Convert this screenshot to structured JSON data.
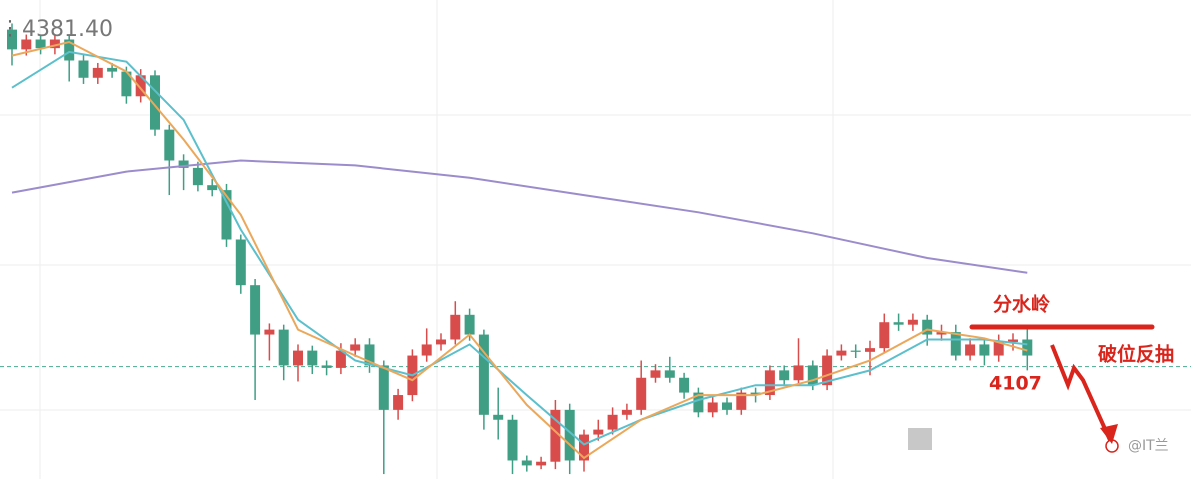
{
  "chart_data": {
    "type": "candlestick",
    "price_label": "4381.40",
    "ylim": [
      4016,
      4404
    ],
    "up_color": "#d94c4c",
    "down_color": "#3f9e84",
    "open": [
      4380,
      4364,
      4372,
      4365,
      4372,
      4355,
      4341,
      4349,
      4346,
      4326,
      4343,
      4299,
      4274,
      4268,
      4254,
      4250,
      4210,
      4173,
      4133,
      4137,
      4108,
      4120,
      4108,
      4106,
      4120,
      4125,
      4108,
      4072,
      4084,
      4116,
      4125,
      4129,
      4149,
      4133,
      4068,
      4064,
      4031,
      4027,
      4030,
      4072,
      4031,
      4052,
      4056,
      4068,
      4072,
      4098,
      4104,
      4098,
      4086,
      4070,
      4078,
      4072,
      4086,
      4084,
      4104,
      4096,
      4108,
      4092,
      4116,
      4120,
      4119,
      4122,
      4143,
      4141,
      4145,
      4133,
      4135,
      4116,
      4125,
      4116,
      4127,
      4129
    ],
    "high": [
      4385,
      4376,
      4376,
      4376,
      4376,
      4360,
      4353,
      4353,
      4350,
      4348,
      4347,
      4303,
      4279,
      4273,
      4259,
      4255,
      4214,
      4178,
      4142,
      4141,
      4125,
      4124,
      4112,
      4126,
      4130,
      4130,
      4112,
      4089,
      4121,
      4138,
      4134,
      4160,
      4154,
      4137,
      4090,
      4068,
      4035,
      4034,
      4080,
      4077,
      4056,
      4064,
      4074,
      4077,
      4112,
      4109,
      4115,
      4102,
      4090,
      4083,
      4082,
      4090,
      4090,
      4108,
      4108,
      4130,
      4112,
      4121,
      4125,
      4125,
      4128,
      4150,
      4150,
      4150,
      4149,
      4141,
      4141,
      4130,
      4130,
      4133,
      4134,
      4141
    ],
    "low": [
      4351,
      4359,
      4360,
      4360,
      4338,
      4336,
      4336,
      4341,
      4320,
      4321,
      4294,
      4246,
      4250,
      4249,
      4245,
      4204,
      4166,
      4080,
      4112,
      4096,
      4095,
      4101,
      4100,
      4101,
      4115,
      4102,
      4020,
      4064,
      4079,
      4111,
      4120,
      4125,
      4128,
      4056,
      4048,
      4020,
      4022,
      4024,
      4024,
      4020,
      4022,
      4047,
      4052,
      4064,
      4068,
      4094,
      4094,
      4081,
      4066,
      4066,
      4068,
      4068,
      4078,
      4080,
      4092,
      4092,
      4088,
      4088,
      4112,
      4114,
      4100,
      4118,
      4136,
      4136,
      4124,
      4128,
      4112,
      4112,
      4108,
      4111,
      4120,
      4104
    ],
    "close": [
      4364,
      4372,
      4365,
      4372,
      4355,
      4341,
      4349,
      4346,
      4326,
      4343,
      4299,
      4274,
      4268,
      4254,
      4250,
      4210,
      4173,
      4133,
      4137,
      4108,
      4120,
      4108,
      4106,
      4120,
      4125,
      4108,
      4072,
      4084,
      4116,
      4125,
      4129,
      4149,
      4133,
      4068,
      4064,
      4031,
      4027,
      4030,
      4072,
      4031,
      4052,
      4056,
      4068,
      4072,
      4098,
      4104,
      4098,
      4086,
      4070,
      4078,
      4072,
      4086,
      4084,
      4104,
      4096,
      4108,
      4092,
      4116,
      4120,
      4119,
      4122,
      4143,
      4141,
      4145,
      4133,
      4135,
      4116,
      4125,
      4116,
      4127,
      4129,
      4116
    ],
    "lines": [
      {
        "color": "#9b8ccc",
        "x": [
          0,
          8,
          16,
          24,
          32,
          40,
          48,
          56,
          64,
          71
        ],
        "values": [
          4248,
          4265,
          4274,
          4270,
          4260,
          4246,
          4232,
          4215,
          4195,
          4183
        ]
      },
      {
        "color": "#5bc0cc",
        "x": [
          0,
          4,
          8,
          12,
          16,
          20,
          24,
          28,
          32,
          36,
          40,
          44,
          48,
          52,
          56,
          60,
          64,
          68,
          71
        ],
        "values": [
          4333,
          4362,
          4354,
          4307,
          4218,
          4145,
          4112,
          4100,
          4125,
          4084,
          4044,
          4064,
          4080,
          4092,
          4092,
          4104,
          4129,
          4129,
          4125
        ]
      },
      {
        "color": "#eba85a",
        "x": [
          0,
          4,
          8,
          12,
          16,
          20,
          24,
          28,
          32,
          36,
          40,
          44,
          48,
          52,
          56,
          60,
          64,
          68,
          71
        ],
        "values": [
          4359,
          4370,
          4346,
          4291,
          4230,
          4137,
          4116,
          4096,
          4133,
          4076,
          4033,
          4064,
          4084,
          4084,
          4096,
          4112,
          4137,
          4130,
          4120
        ]
      }
    ],
    "reference_line": 4107,
    "annotations": [
      "分水岭",
      "破位反抽",
      "4107"
    ],
    "watermark": "@IT兰"
  }
}
